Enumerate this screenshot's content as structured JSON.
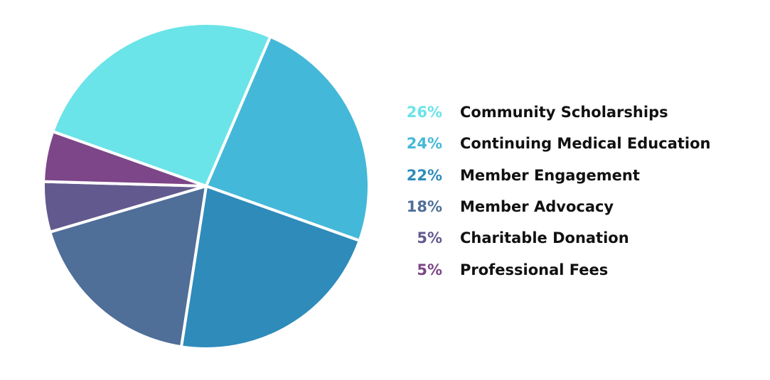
{
  "chart_data": {
    "type": "pie",
    "title": "",
    "unit": "%",
    "slices": [
      {
        "label": "Community Scholarships",
        "value": 26,
        "display": "26%",
        "color": "#6ae4e8"
      },
      {
        "label": "Continuing Medical Education",
        "value": 24,
        "display": "24%",
        "color": "#44b8d8"
      },
      {
        "label": "Member Engagement",
        "value": 22,
        "display": "22%",
        "color": "#2e8bba"
      },
      {
        "label": "Member Advocacy",
        "value": 18,
        "display": "18%",
        "color": "#4f6e98"
      },
      {
        "label": "Charitable Donation",
        "value": 5,
        "display": "5%",
        "color": "#625a8e"
      },
      {
        "label": "Professional Fees",
        "value": 5,
        "display": "5%",
        "color": "#7d4688"
      }
    ],
    "legend_position": "right"
  }
}
